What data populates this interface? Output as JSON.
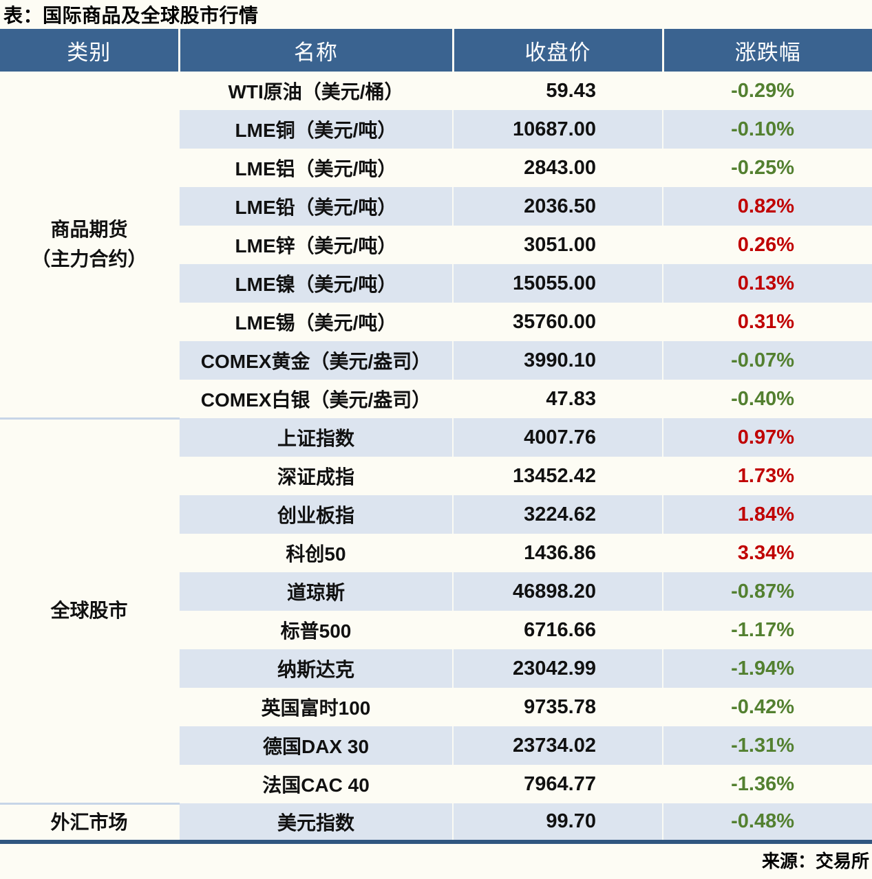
{
  "title": "表：国际商品及全球股市行情",
  "source": "来源：交易所",
  "colors": {
    "header_bg": "#3A6390",
    "row_alt_bg": "#DCE4EF",
    "page_bg": "#FDFCF4",
    "up": "#C00000",
    "down": "#538030",
    "bottom_border": "#305680",
    "group_divider": "#C7D5E7"
  },
  "chart_data": {
    "type": "table",
    "title": "表：国际商品及全球股市行情",
    "source": "来源：交易所",
    "columns": [
      "类别",
      "名称",
      "收盘价",
      "涨跌幅"
    ],
    "groups": [
      {
        "label_line1": "商品期货",
        "label_line2": "（主力合约）",
        "rowspan": 9
      },
      {
        "label_line1": "全球股市",
        "label_line2": "",
        "rowspan": 10
      },
      {
        "label_line1": "外汇市场",
        "label_line2": "",
        "rowspan": 1
      }
    ],
    "rows": [
      {
        "category": "商品期货（主力合约）",
        "name": "WTI原油（美元/桶）",
        "close": "59.43",
        "change": "-0.29%",
        "direction": "down"
      },
      {
        "category": "商品期货（主力合约）",
        "name": "LME铜（美元/吨）",
        "close": "10687.00",
        "change": "-0.10%",
        "direction": "down"
      },
      {
        "category": "商品期货（主力合约）",
        "name": "LME铝（美元/吨）",
        "close": "2843.00",
        "change": "-0.25%",
        "direction": "down"
      },
      {
        "category": "商品期货（主力合约）",
        "name": "LME铅（美元/吨）",
        "close": "2036.50",
        "change": "0.82%",
        "direction": "up"
      },
      {
        "category": "商品期货（主力合约）",
        "name": "LME锌（美元/吨）",
        "close": "3051.00",
        "change": "0.26%",
        "direction": "up"
      },
      {
        "category": "商品期货（主力合约）",
        "name": "LME镍（美元/吨）",
        "close": "15055.00",
        "change": "0.13%",
        "direction": "up"
      },
      {
        "category": "商品期货（主力合约）",
        "name": "LME锡（美元/吨）",
        "close": "35760.00",
        "change": "0.31%",
        "direction": "up"
      },
      {
        "category": "商品期货（主力合约）",
        "name": "COMEX黄金（美元/盎司）",
        "close": "3990.10",
        "change": "-0.07%",
        "direction": "down"
      },
      {
        "category": "商品期货（主力合约）",
        "name": "COMEX白银（美元/盎司）",
        "close": "47.83",
        "change": "-0.40%",
        "direction": "down"
      },
      {
        "category": "全球股市",
        "name": "上证指数",
        "close": "4007.76",
        "change": "0.97%",
        "direction": "up"
      },
      {
        "category": "全球股市",
        "name": "深证成指",
        "close": "13452.42",
        "change": "1.73%",
        "direction": "up"
      },
      {
        "category": "全球股市",
        "name": "创业板指",
        "close": "3224.62",
        "change": "1.84%",
        "direction": "up"
      },
      {
        "category": "全球股市",
        "name": "科创50",
        "close": "1436.86",
        "change": "3.34%",
        "direction": "up"
      },
      {
        "category": "全球股市",
        "name": "道琼斯",
        "close": "46898.20",
        "change": "-0.87%",
        "direction": "down"
      },
      {
        "category": "全球股市",
        "name": "标普500",
        "close": "6716.66",
        "change": "-1.17%",
        "direction": "down"
      },
      {
        "category": "全球股市",
        "name": "纳斯达克",
        "close": "23042.99",
        "change": "-1.94%",
        "direction": "down"
      },
      {
        "category": "全球股市",
        "name": "英国富时100",
        "close": "9735.78",
        "change": "-0.42%",
        "direction": "down"
      },
      {
        "category": "全球股市",
        "name": "德国DAX 30",
        "close": "23734.02",
        "change": "-1.31%",
        "direction": "down"
      },
      {
        "category": "全球股市",
        "name": "法国CAC 40",
        "close": "7964.77",
        "change": "-1.36%",
        "direction": "down"
      },
      {
        "category": "外汇市场",
        "name": "美元指数",
        "close": "99.70",
        "change": "-0.48%",
        "direction": "down"
      }
    ]
  }
}
